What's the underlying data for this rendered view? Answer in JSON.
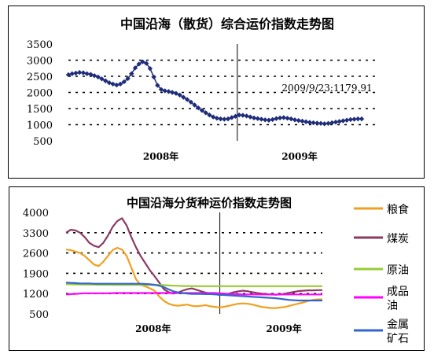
{
  "chart_data": [
    {
      "type": "line",
      "title": "中国沿海（散货）综合运价指数走势图",
      "xlabel": "",
      "ylabel": "",
      "x_ticks": [
        "2008年",
        "2009年"
      ],
      "ylim": [
        500,
        3500
      ],
      "y_ticks": [
        500,
        1000,
        1500,
        2000,
        2500,
        3000,
        3500
      ],
      "grid": "dotted horizontal at 1000, 1500, 2000, 2500, 3000",
      "annotation": "2009/9/23:1179.91",
      "series": [
        {
          "color": "#1f2d7a",
          "marker": "diamond",
          "values": [
            2550,
            2580,
            2600,
            2620,
            2610,
            2580,
            2560,
            2520,
            2480,
            2420,
            2360,
            2300,
            2260,
            2230,
            2260,
            2330,
            2430,
            2580,
            2760,
            2880,
            2950,
            2900,
            2740,
            2480,
            2220,
            2090,
            2050,
            2030,
            2000,
            1970,
            1920,
            1850,
            1780,
            1700,
            1610,
            1520,
            1440,
            1370,
            1300,
            1240,
            1200,
            1180,
            1170,
            1180,
            1220,
            1260,
            1300,
            1290,
            1270,
            1240,
            1210,
            1190,
            1170,
            1150,
            1140,
            1160,
            1190,
            1210,
            1220,
            1200,
            1180,
            1150,
            1130,
            1110,
            1090,
            1070,
            1060,
            1050,
            1040,
            1030,
            1040,
            1060,
            1080,
            1100,
            1120,
            1140,
            1160,
            1170,
            1180,
            1180
          ]
        }
      ]
    },
    {
      "type": "line",
      "title": "中国沿海分货种运价指数走势图",
      "xlabel": "",
      "ylabel": "",
      "x_ticks": [
        "2008年",
        "2009年"
      ],
      "ylim": [
        500,
        4000
      ],
      "y_ticks": [
        500,
        1200,
        1900,
        2600,
        3300,
        4000
      ],
      "grid": "dotted horizontal at 1200, 1900, 2600, 3300",
      "legend_position": "right",
      "series": [
        {
          "name": "粮食",
          "color": "#f0a020",
          "values": [
            2720,
            2700,
            2650,
            2600,
            2500,
            2350,
            2200,
            2150,
            2300,
            2500,
            2700,
            2780,
            2720,
            2500,
            2100,
            1700,
            1500,
            1450,
            1380,
            1300,
            1100,
            950,
            850,
            800,
            780,
            800,
            820,
            780,
            760,
            780,
            800,
            760,
            740,
            720,
            750,
            780,
            820,
            850,
            860,
            850,
            820,
            780,
            740,
            720,
            700,
            700,
            720,
            740,
            780,
            820,
            860,
            900,
            950,
            980,
            1000,
            1000
          ]
        },
        {
          "name": "煤炭",
          "color": "#8b3a62",
          "values": [
            3300,
            3400,
            3380,
            3300,
            3150,
            2950,
            2850,
            2800,
            2950,
            3200,
            3500,
            3700,
            3800,
            3550,
            3150,
            2800,
            2500,
            2250,
            2000,
            1800,
            1580,
            1350,
            1250,
            1200,
            1230,
            1300,
            1350,
            1380,
            1330,
            1280,
            1230,
            1200,
            1180,
            1150,
            1170,
            1200,
            1250,
            1280,
            1300,
            1280,
            1250,
            1220,
            1200,
            1180,
            1170,
            1160,
            1170,
            1200,
            1230,
            1260,
            1290,
            1300,
            1310,
            1310,
            1320,
            1320
          ]
        },
        {
          "name": "原油",
          "color": "#99cc33",
          "values": [
            1520,
            1520,
            1515,
            1515,
            1510,
            1510,
            1510,
            1505,
            1505,
            1505,
            1500,
            1500,
            1500,
            1500,
            1500,
            1500,
            1500,
            1500,
            1500,
            1500,
            1500,
            1490,
            1480,
            1470,
            1470,
            1460,
            1460,
            1460,
            1455,
            1455,
            1455,
            1455,
            1455,
            1455,
            1455,
            1455,
            1455,
            1455,
            1455,
            1455,
            1455,
            1455,
            1455,
            1455,
            1455,
            1455,
            1455,
            1455,
            1455,
            1455,
            1455,
            1455,
            1455,
            1455,
            1455,
            1455
          ]
        },
        {
          "name": "成品油",
          "color": "#ff00ff",
          "values": [
            1170,
            1180,
            1190,
            1200,
            1210,
            1210,
            1210,
            1210,
            1210,
            1210,
            1215,
            1220,
            1220,
            1220,
            1220,
            1220,
            1220,
            1220,
            1220,
            1220,
            1220,
            1220,
            1220,
            1220,
            1220,
            1220,
            1220,
            1220,
            1220,
            1220,
            1220,
            1220,
            1220,
            1210,
            1200,
            1190,
            1180,
            1180,
            1170,
            1170,
            1170,
            1170,
            1170,
            1170,
            1170,
            1170,
            1170,
            1170,
            1170,
            1170,
            1170,
            1170,
            1170,
            1170,
            1170,
            1170
          ]
        },
        {
          "name": "金属矿石",
          "color": "#3366cc",
          "values": [
            1580,
            1570,
            1560,
            1550,
            1550,
            1550,
            1540,
            1540,
            1540,
            1540,
            1540,
            1540,
            1540,
            1540,
            1540,
            1540,
            1540,
            1530,
            1520,
            1500,
            1470,
            1420,
            1350,
            1280,
            1240,
            1220,
            1200,
            1190,
            1190,
            1190,
            1180,
            1180,
            1170,
            1160,
            1150,
            1140,
            1130,
            1120,
            1110,
            1100,
            1090,
            1080,
            1070,
            1060,
            1050,
            1040,
            1020,
            1000,
            980,
            970,
            960,
            960,
            960,
            960,
            960,
            960
          ]
        }
      ]
    }
  ]
}
